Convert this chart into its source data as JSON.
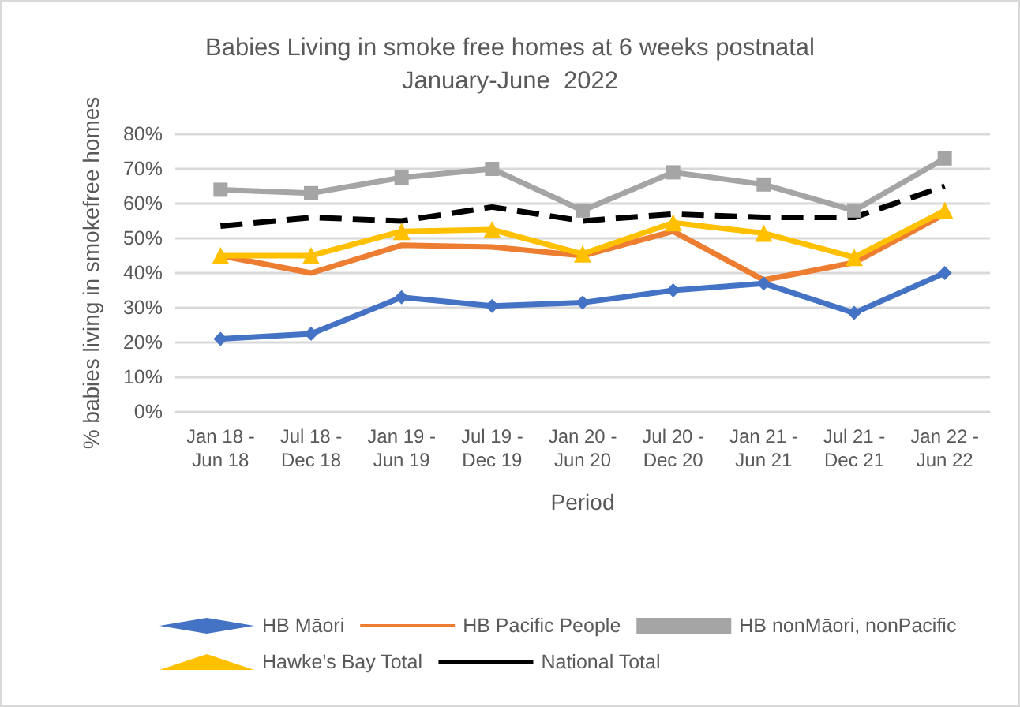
{
  "chart_data": {
    "type": "line",
    "title": "Babies Living in smoke free homes at 6 weeks postnatal\nJanuary-June  2022",
    "xlabel": "Period",
    "ylabel": "% babies living in smokefree homes",
    "categories": [
      "Jan 18 -\nJun 18",
      "Jul 18 -\nDec 18",
      "Jan 19 -\nJun 19",
      "Jul 19 -\nDec 19",
      "Jan 20 -\nJun 20",
      "Jul 20 -\nDec 20",
      "Jan 21 -\nJun 21",
      "Jul 21 -\nDec 21",
      "Jan 22 -\nJun 22"
    ],
    "series": [
      {
        "name": "HB Māori",
        "color": "#4472c4",
        "marker": "diamond",
        "line_style": "solid",
        "values": [
          21,
          22.5,
          33,
          30.5,
          31.5,
          35,
          37,
          28.5,
          40
        ]
      },
      {
        "name": "HB Pacific People",
        "color": "#ed7d31",
        "marker": "none",
        "line_style": "solid",
        "values": [
          45,
          40,
          48,
          47.5,
          45,
          52,
          38,
          43,
          57
        ]
      },
      {
        "name": "HB nonMāori, nonPacific",
        "color": "#a5a5a5",
        "marker": "square",
        "line_style": "solid",
        "values": [
          64,
          63,
          67.5,
          70,
          58,
          69,
          65.5,
          58,
          73
        ]
      },
      {
        "name": "Hawke's Bay Total",
        "color": "#ffc000",
        "marker": "triangle",
        "line_style": "solid",
        "values": [
          45,
          45,
          52,
          52.5,
          45.5,
          54.5,
          51.5,
          44.5,
          58
        ]
      },
      {
        "name": "National Total",
        "color": "#000000",
        "marker": "none",
        "line_style": "dashed",
        "values": [
          53.5,
          56,
          55,
          59,
          55,
          57,
          56,
          56,
          65
        ]
      }
    ],
    "ylim": [
      0,
      80
    ],
    "yticks": [
      {
        "value": 0,
        "label": "0%"
      },
      {
        "value": 10,
        "label": "10%"
      },
      {
        "value": 20,
        "label": "20%"
      },
      {
        "value": 30,
        "label": "30%"
      },
      {
        "value": 40,
        "label": "40%"
      },
      {
        "value": 50,
        "label": "50%"
      },
      {
        "value": 60,
        "label": "60%"
      },
      {
        "value": 70,
        "label": "70%"
      },
      {
        "value": 80,
        "label": "80%"
      }
    ],
    "grid": "y",
    "legend": "bottom"
  }
}
